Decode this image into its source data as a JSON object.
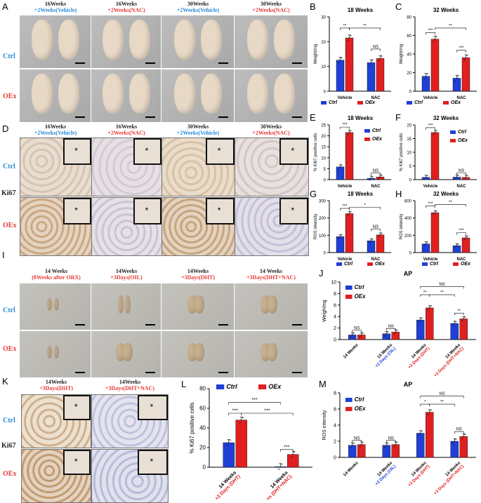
{
  "panels": {
    "A": "A",
    "B": "B",
    "C": "C",
    "D": "D",
    "E": "E",
    "F": "F",
    "G": "G",
    "H": "H",
    "I": "I",
    "J": "J",
    "K": "K",
    "L": "L",
    "M": "M"
  },
  "rows": {
    "ctrl": "Ctrl",
    "oex": "OEx",
    "ki67": "Ki67"
  },
  "panel_A_headers": [
    {
      "line1": "16Weeks",
      "line2": "+2Weeks(Vehicle)",
      "c2": "blue"
    },
    {
      "line1": "16Weeks",
      "line2": "+2Weeks(NAC)",
      "c2": "red"
    },
    {
      "line1": "30Weeks",
      "line2": "+2Weeks(Vehicle)",
      "c2": "blue"
    },
    {
      "line1": "30Weeks",
      "line2": "+2Weeks(NAC)",
      "c2": "red"
    }
  ],
  "panel_I_headers": [
    {
      "line1": "14 Weeks",
      "line2": "(8Weeks after ORX)"
    },
    {
      "line1": "14Weeks",
      "line2": "+3Days(OIL)"
    },
    {
      "line1": "14Weeks",
      "line2": "+3Days(DHT)"
    },
    {
      "line1": "14 Weeks",
      "line2": "+3Days(DHT+NAC)"
    }
  ],
  "panel_K_headers": [
    {
      "line1": "14Weeks",
      "line2": "+3Days(DHT)"
    },
    {
      "line1": "14Weeks",
      "line2": "+3Days(DHT+NAC)"
    }
  ],
  "colors": {
    "ctrl": "#1f3fd6",
    "oex": "#e02020",
    "ctrl_label": "#2a8bd8",
    "oex_label": "#e53935"
  },
  "legend": {
    "ctrl": "Ctrl",
    "oex": "OEx"
  },
  "chart_data": [
    {
      "panel": "B",
      "type": "bar",
      "title": "18 Weeks",
      "ylabel": "Weight/mg",
      "ylim": [
        0,
        30
      ],
      "yticks": [
        0,
        10,
        20,
        30
      ],
      "categories": [
        "Vehicle",
        "NAC"
      ],
      "series": [
        {
          "name": "Ctrl",
          "values": [
            12.5,
            11.5
          ]
        },
        {
          "name": "OEx",
          "values": [
            21.5,
            13.2
          ]
        }
      ],
      "sig": [
        "**",
        "**",
        "NS"
      ]
    },
    {
      "panel": "C",
      "type": "bar",
      "title": "32 Weeks",
      "ylabel": "Weight/mg",
      "ylim": [
        0,
        80
      ],
      "yticks": [
        0,
        20,
        40,
        60,
        80
      ],
      "categories": [
        "Vehicle",
        "NAC"
      ],
      "series": [
        {
          "name": "Ctrl",
          "values": [
            16,
            14
          ]
        },
        {
          "name": "OEx",
          "values": [
            56,
            36
          ]
        }
      ],
      "sig": [
        "***",
        "**",
        "***"
      ]
    },
    {
      "panel": "E",
      "type": "bar",
      "title": "18 Weeks",
      "ylabel": "% Ki67 positive cells",
      "ylim": [
        0,
        25
      ],
      "yticks": [
        0,
        5,
        10,
        15,
        20,
        25
      ],
      "categories": [
        "Vehicle",
        "NAC"
      ],
      "series": [
        {
          "name": "Ctrl",
          "values": [
            5.8,
            0.6
          ]
        },
        {
          "name": "OEx",
          "values": [
            21.5,
            1.2
          ]
        }
      ],
      "sig": [
        "***",
        "NS"
      ]
    },
    {
      "panel": "F",
      "type": "bar",
      "title": "32 Weeks",
      "ylabel": "% Ki67 positive cells",
      "ylim": [
        0,
        20
      ],
      "yticks": [
        0,
        5,
        10,
        15,
        20
      ],
      "categories": [
        "Vehicle",
        "NAC"
      ],
      "series": [
        {
          "name": "Ctrl",
          "values": [
            0.8,
            0.9
          ]
        },
        {
          "name": "OEx",
          "values": [
            17.2,
            0.8
          ]
        }
      ],
      "sig": [
        "***",
        "NS"
      ]
    },
    {
      "panel": "G",
      "type": "bar",
      "title": "18 Weeks",
      "ylabel": "ROS intensity",
      "ylim": [
        0,
        300
      ],
      "yticks": [
        0,
        100,
        200,
        300
      ],
      "categories": [
        "Vehicle",
        "NAC"
      ],
      "series": [
        {
          "name": "Ctrl",
          "values": [
            92,
            68
          ]
        },
        {
          "name": "OEx",
          "values": [
            225,
            102
          ]
        }
      ],
      "sig": [
        "***",
        "*",
        "NS"
      ]
    },
    {
      "panel": "H",
      "type": "bar",
      "title": "32 Weeks",
      "ylabel": "ROS intensity",
      "ylim": [
        0,
        600
      ],
      "yticks": [
        0,
        200,
        400,
        600
      ],
      "categories": [
        "Vehicle",
        "NAC"
      ],
      "series": [
        {
          "name": "Ctrl",
          "values": [
            100,
            80
          ]
        },
        {
          "name": "OEx",
          "values": [
            460,
            170
          ]
        }
      ],
      "sig": [
        "***",
        "**",
        "***"
      ]
    },
    {
      "panel": "J",
      "type": "bar",
      "title": "AP",
      "ylabel": "Weigh/mg",
      "ylim": [
        0,
        10
      ],
      "yticks": [
        0,
        2,
        4,
        6,
        8,
        10
      ],
      "categories": [
        "14 Weeks",
        "14 Weeks|+3 Days (OIL)",
        "14 Weeks|+3 Days (DHT)",
        "14 Weeks|+3 Days (DHT+NAC)"
      ],
      "series": [
        {
          "name": "Ctrl",
          "values": [
            0.8,
            1.0,
            3.4,
            2.8
          ]
        },
        {
          "name": "OEx",
          "values": [
            0.8,
            1.3,
            5.5,
            3.6
          ]
        }
      ],
      "sig": [
        "NS",
        "NS",
        "**",
        "**",
        "**",
        "NS"
      ]
    },
    {
      "panel": "L",
      "type": "bar",
      "title": "",
      "ylabel": "% Ki67 positive cells",
      "ylim": [
        0,
        80
      ],
      "yticks": [
        0,
        20,
        40,
        60,
        80
      ],
      "categories": [
        "14 Weeks|+3 Days (DHT)",
        "14 Weeks|+3 Days (DHT+NAC)"
      ],
      "series": [
        {
          "name": "Ctrl",
          "values": [
            25,
            0.5
          ]
        },
        {
          "name": "OEx",
          "values": [
            48,
            13
          ]
        }
      ],
      "sig": [
        "***",
        "***",
        "***",
        "***"
      ]
    },
    {
      "panel": "M",
      "type": "bar",
      "title": "AP",
      "ylabel": "ROS intensity",
      "ylim": [
        0,
        8
      ],
      "yticks": [
        0,
        2,
        4,
        6,
        8
      ],
      "categories": [
        "14 Weeks",
        "14 Weeks|+3 Days (OIL)",
        "14 Weeks|+3 Days (DHT)",
        "14 Weeks|+3 Days (DHT+NAC)"
      ],
      "series": [
        {
          "name": "Ctrl",
          "values": [
            1.5,
            1.5,
            3.0,
            2.0
          ]
        },
        {
          "name": "OEx",
          "values": [
            1.6,
            1.6,
            5.6,
            2.6
          ]
        }
      ],
      "sig": [
        "NS",
        "NS",
        "*",
        "**",
        "NS",
        "NS"
      ]
    }
  ]
}
